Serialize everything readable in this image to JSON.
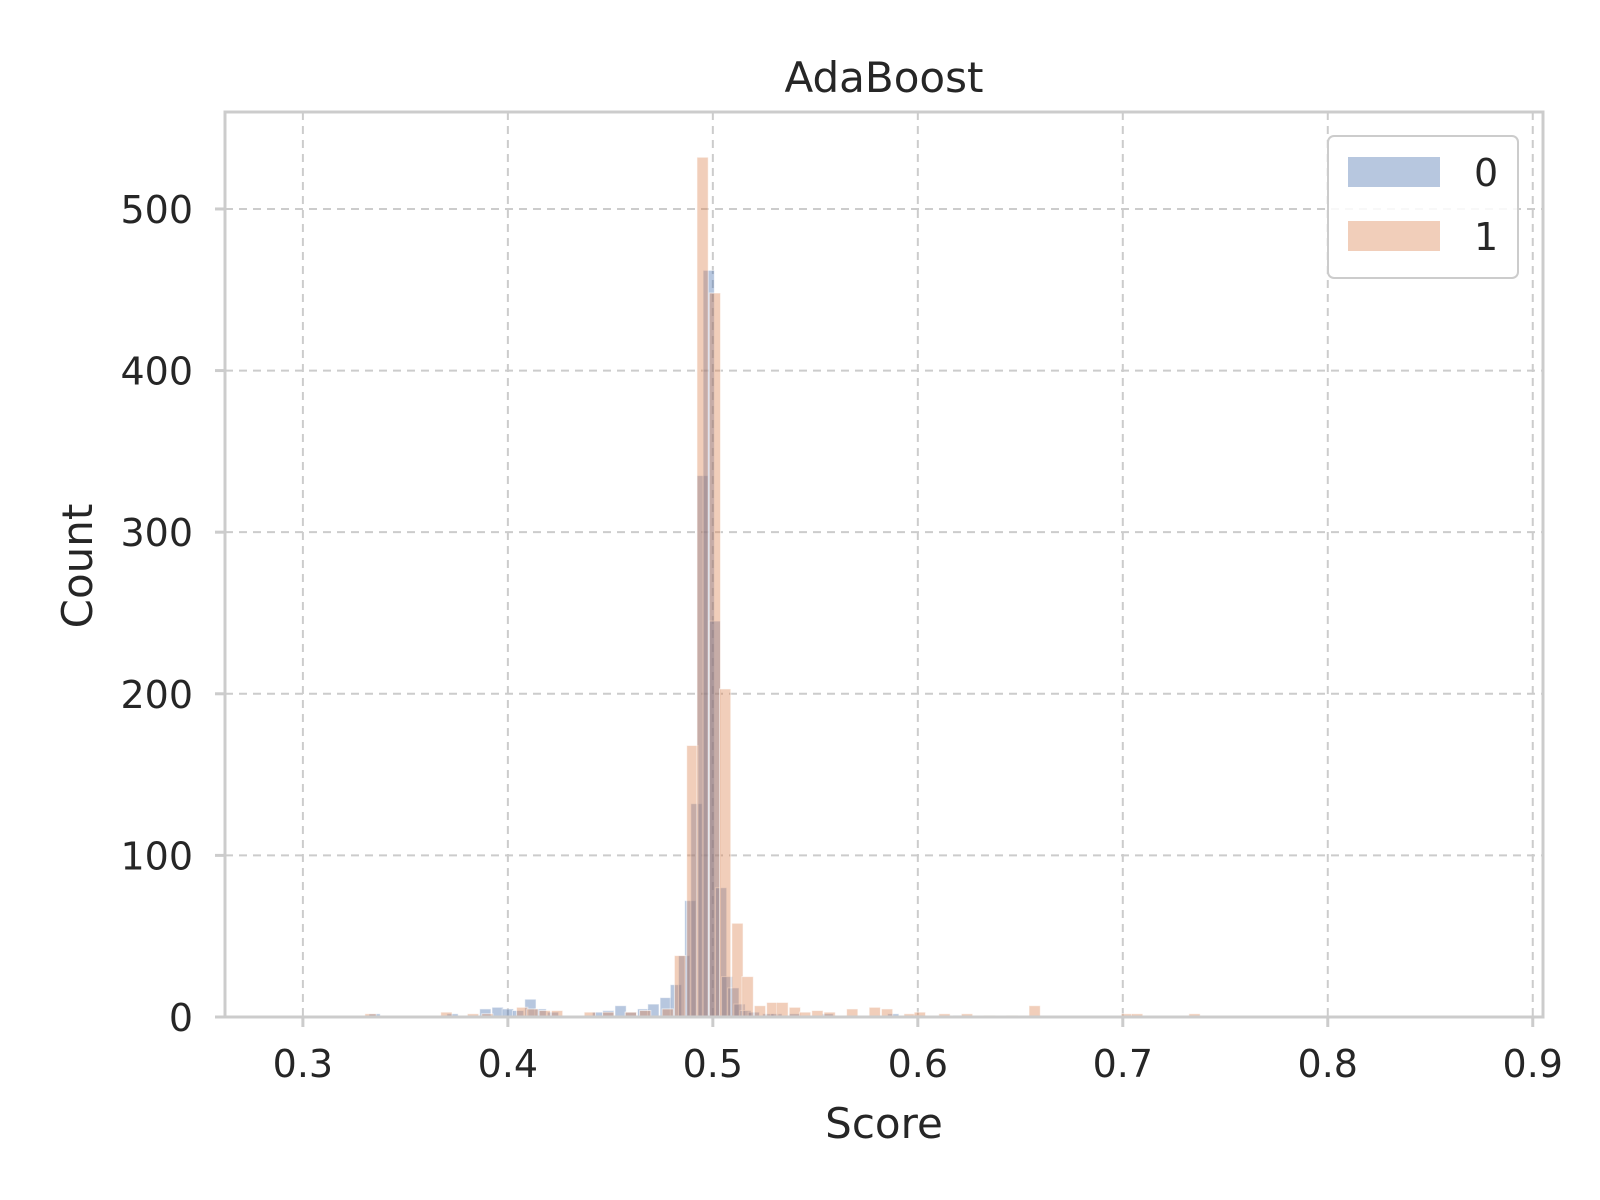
{
  "chart_data": {
    "type": "bar",
    "title": "AdaBoost",
    "xlabel": "Score",
    "ylabel": "Count",
    "xlim": [
      0.262,
      0.905
    ],
    "ylim": [
      0,
      560
    ],
    "xticks": [
      "0.3",
      "0.4",
      "0.5",
      "0.6",
      "0.7",
      "0.8",
      "0.9"
    ],
    "yticks": [
      "0",
      "100",
      "200",
      "300",
      "400",
      "500"
    ],
    "xtick_values": [
      0.3,
      0.4,
      0.5,
      0.6,
      0.7,
      0.8,
      0.9
    ],
    "ytick_values": [
      0,
      100,
      200,
      300,
      400,
      500
    ],
    "grid": true,
    "legend_position": "top-right",
    "bin_width": 0.0055,
    "series": [
      {
        "name": "0",
        "color": "#4c72b0",
        "opacity": 0.4,
        "x": [
          0.335,
          0.373,
          0.389,
          0.395,
          0.4,
          0.405,
          0.411,
          0.416,
          0.422,
          0.444,
          0.449,
          0.455,
          0.46,
          0.466,
          0.471,
          0.477,
          0.482,
          0.486,
          0.489,
          0.492,
          0.495,
          0.498,
          0.501,
          0.504,
          0.507,
          0.51,
          0.513,
          0.516,
          0.52,
          0.527,
          0.531,
          0.54,
          0.556,
          0.588,
          0.6,
          0.62
        ],
        "values": [
          2,
          2,
          5,
          6,
          5,
          4,
          11,
          5,
          3,
          3,
          4,
          7,
          3,
          5,
          8,
          12,
          20,
          38,
          72,
          132,
          335,
          462,
          245,
          80,
          25,
          18,
          8,
          4,
          3,
          2,
          2,
          2,
          2,
          2,
          1,
          1
        ]
      },
      {
        "name": "1",
        "color": "#dd8452",
        "opacity": 0.4,
        "x": [
          0.333,
          0.37,
          0.383,
          0.39,
          0.407,
          0.412,
          0.418,
          0.424,
          0.44,
          0.449,
          0.46,
          0.467,
          0.478,
          0.484,
          0.49,
          0.495,
          0.501,
          0.506,
          0.512,
          0.517,
          0.523,
          0.529,
          0.534,
          0.54,
          0.545,
          0.551,
          0.557,
          0.568,
          0.579,
          0.585,
          0.596,
          0.601,
          0.613,
          0.624,
          0.635,
          0.646,
          0.657,
          0.702,
          0.707,
          0.735
        ],
        "values": [
          2,
          3,
          2,
          2,
          6,
          5,
          4,
          4,
          3,
          3,
          3,
          4,
          5,
          38,
          168,
          532,
          448,
          203,
          58,
          25,
          7,
          9,
          9,
          6,
          3,
          4,
          3,
          5,
          6,
          5,
          2,
          3,
          2,
          2,
          1,
          1,
          7,
          2,
          2,
          2
        ]
      }
    ]
  }
}
